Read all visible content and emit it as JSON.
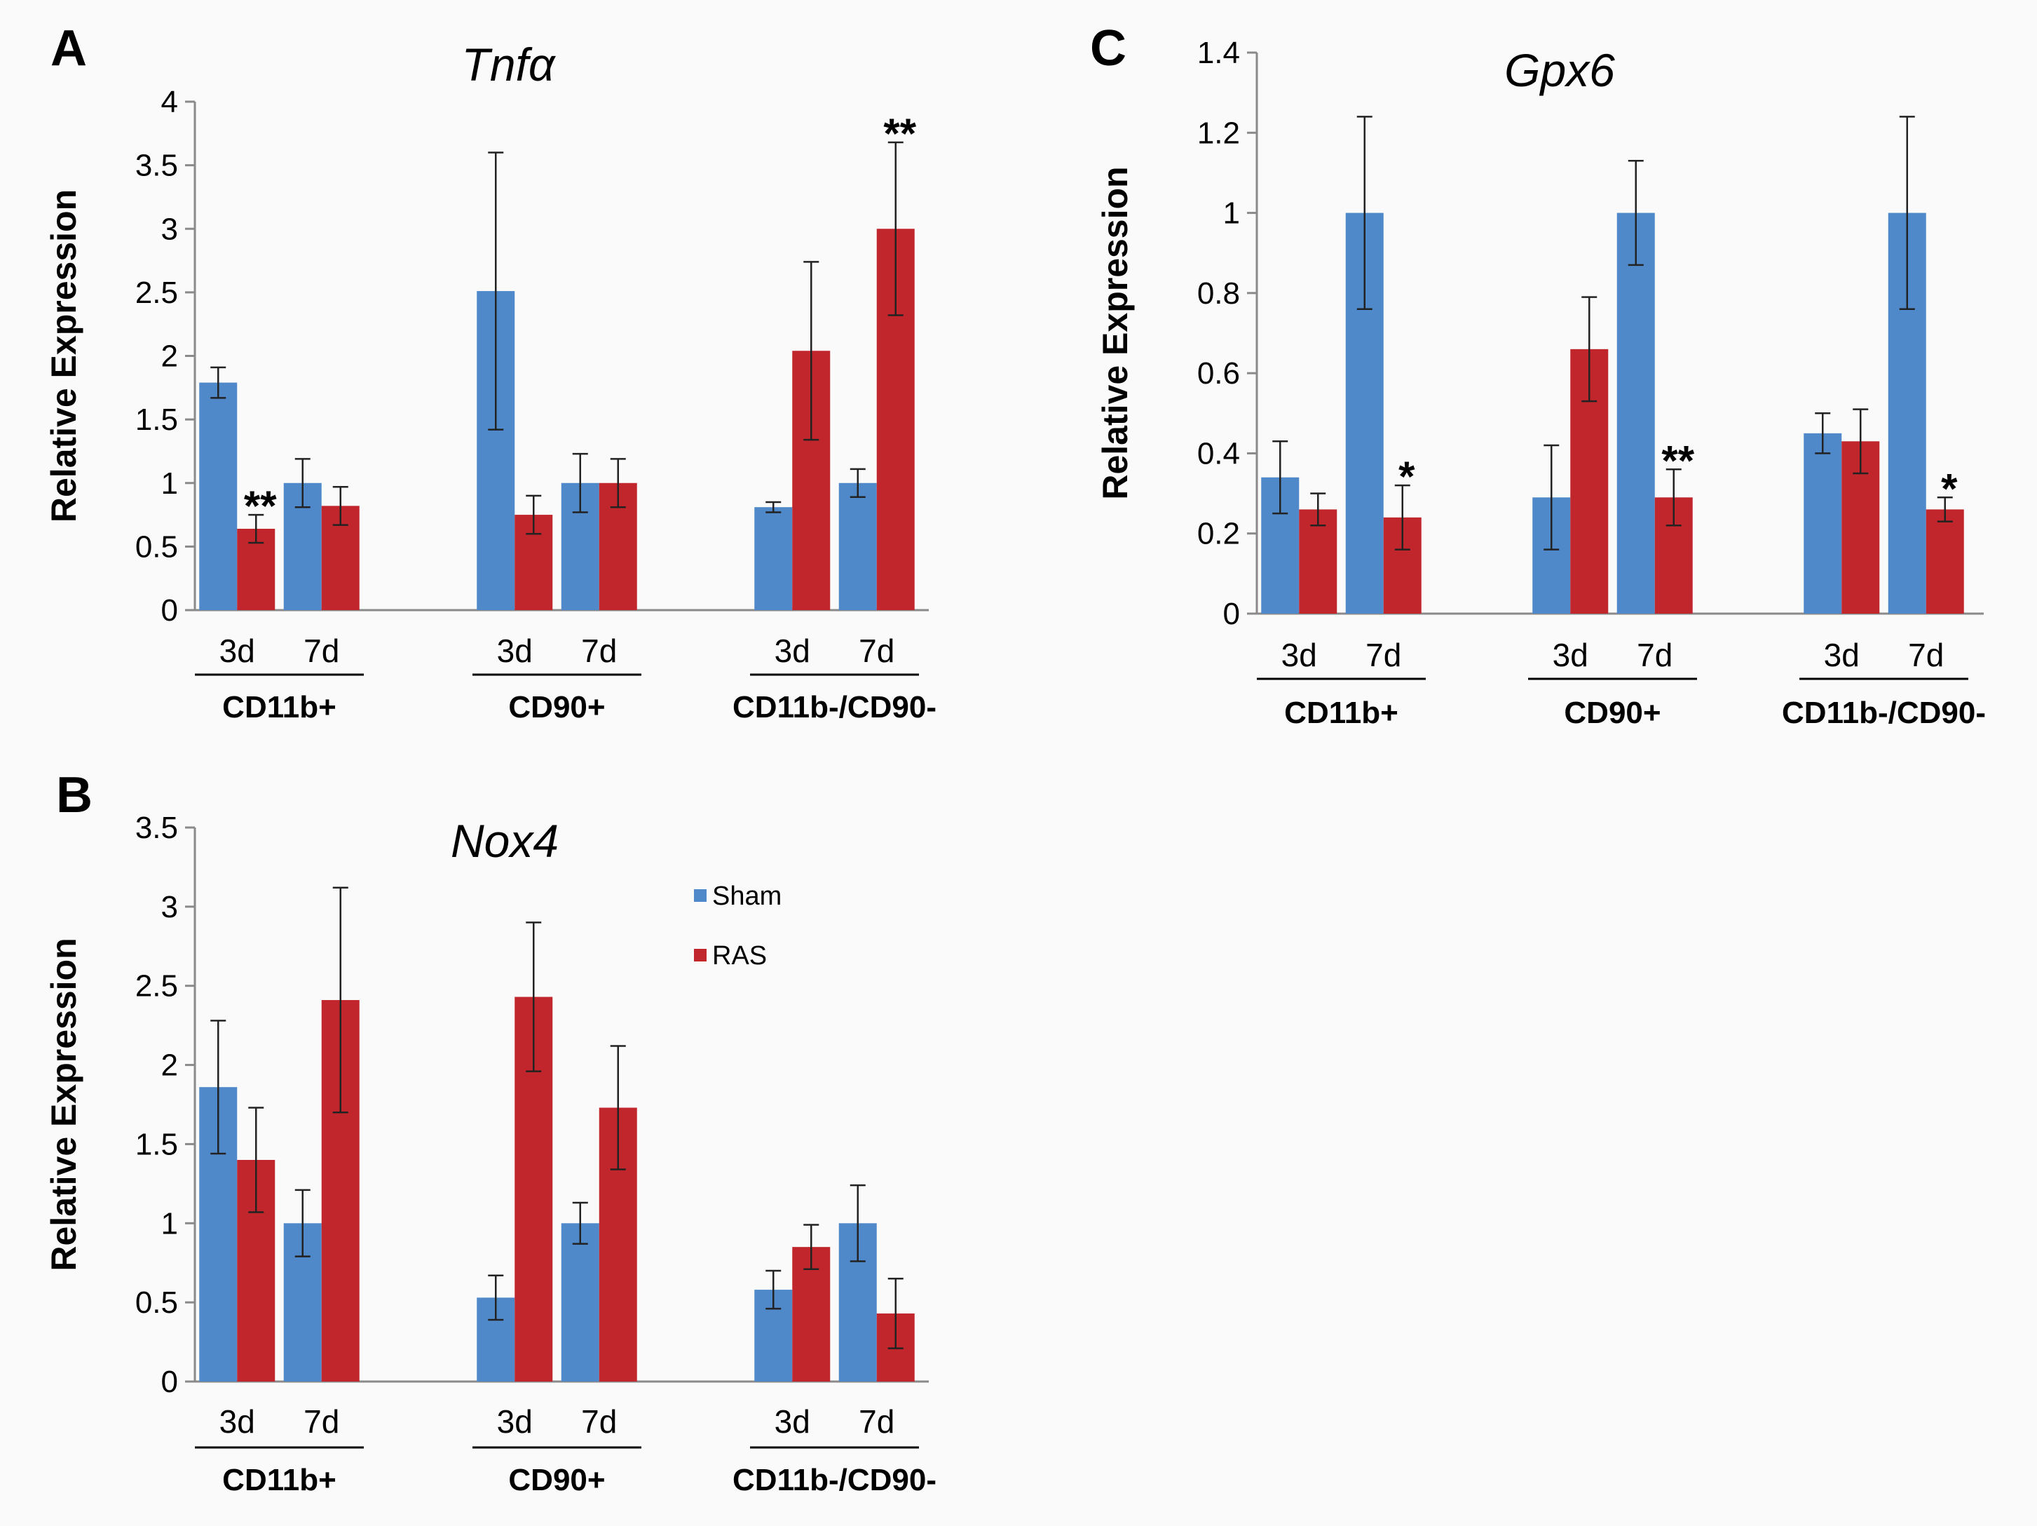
{
  "colors": {
    "sham": "#4f89c9",
    "ras": "#c1262c",
    "axis": "#8a8a8a"
  },
  "legend": {
    "sham": "Sham",
    "ras": "RAS"
  },
  "chart_data": [
    {
      "panel": "A",
      "type": "bar",
      "title": "Tnfα",
      "ylabel": "Relative Expression",
      "ylim": [
        0,
        4
      ],
      "yticks": [
        0,
        0.5,
        1,
        1.5,
        2,
        2.5,
        3,
        3.5,
        4
      ],
      "ytick_labels": [
        "0",
        "0.5",
        "1",
        "1.5",
        "2",
        "2.5",
        "3",
        "3.5",
        "4"
      ],
      "categories": [
        "CD11b+",
        "CD90+",
        "CD11b-/CD90-"
      ],
      "timepoints": [
        "3d",
        "7d"
      ],
      "series": [
        {
          "name": "Sham",
          "values": [
            [
              1.79,
              1.0
            ],
            [
              2.51,
              1.0
            ],
            [
              0.81,
              1.0
            ]
          ],
          "errors": [
            [
              0.12,
              0.19
            ],
            [
              1.09,
              0.23
            ],
            [
              0.04,
              0.11
            ]
          ]
        },
        {
          "name": "RAS",
          "values": [
            [
              0.64,
              0.82
            ],
            [
              0.75,
              1.0
            ],
            [
              2.04,
              3.0
            ]
          ],
          "errors": [
            [
              0.11,
              0.15
            ],
            [
              0.15,
              0.19
            ],
            [
              0.7,
              0.68
            ]
          ]
        }
      ],
      "annotations": [
        {
          "text": "**",
          "category": 0,
          "timepoint": 0,
          "series": 1
        },
        {
          "text": "**",
          "category": 2,
          "timepoint": 1,
          "series": 1
        }
      ]
    },
    {
      "panel": "B",
      "type": "bar",
      "title": "Nox4",
      "ylabel": "Relative Expression",
      "ylim": [
        0,
        3.5
      ],
      "yticks": [
        0,
        0.5,
        1,
        1.5,
        2,
        2.5,
        3,
        3.5
      ],
      "ytick_labels": [
        "0",
        "0.5",
        "1",
        "1.5",
        "2",
        "2.5",
        "3",
        "3.5"
      ],
      "categories": [
        "CD11b+",
        "CD90+",
        "CD11b-/CD90-"
      ],
      "timepoints": [
        "3d",
        "7d"
      ],
      "series": [
        {
          "name": "Sham",
          "values": [
            [
              1.86,
              1.0
            ],
            [
              0.53,
              1.0
            ],
            [
              0.58,
              1.0
            ]
          ],
          "errors": [
            [
              0.42,
              0.21
            ],
            [
              0.14,
              0.13
            ],
            [
              0.12,
              0.24
            ]
          ]
        },
        {
          "name": "RAS",
          "values": [
            [
              1.4,
              2.41
            ],
            [
              2.43,
              1.73
            ],
            [
              0.85,
              0.43
            ]
          ],
          "errors": [
            [
              0.33,
              0.71
            ],
            [
              0.47,
              0.39
            ],
            [
              0.14,
              0.22
            ]
          ]
        }
      ],
      "annotations": [],
      "show_legend": true
    },
    {
      "panel": "C",
      "type": "bar",
      "title": "Gpx6",
      "ylabel": "Relative Expression",
      "ylim": [
        0,
        1.4
      ],
      "yticks": [
        0,
        0.2,
        0.4,
        0.6,
        0.8,
        1,
        1.2,
        1.4
      ],
      "ytick_labels": [
        "0",
        "0.2",
        "0.4",
        "0.6",
        "0.8",
        "1",
        "1.2",
        "1.4"
      ],
      "categories": [
        "CD11b+",
        "CD90+",
        "CD11b-/CD90-"
      ],
      "timepoints": [
        "3d",
        "7d"
      ],
      "series": [
        {
          "name": "Sham",
          "values": [
            [
              0.34,
              1.0
            ],
            [
              0.29,
              1.0
            ],
            [
              0.45,
              1.0
            ]
          ],
          "errors": [
            [
              0.09,
              0.24
            ],
            [
              0.13,
              0.13
            ],
            [
              0.05,
              0.24
            ]
          ]
        },
        {
          "name": "RAS",
          "values": [
            [
              0.26,
              0.24
            ],
            [
              0.66,
              0.29
            ],
            [
              0.43,
              0.26
            ]
          ],
          "errors": [
            [
              0.04,
              0.08
            ],
            [
              0.13,
              0.07
            ],
            [
              0.08,
              0.03
            ]
          ]
        }
      ],
      "annotations": [
        {
          "text": "*",
          "category": 0,
          "timepoint": 1,
          "series": 1
        },
        {
          "text": "**",
          "category": 1,
          "timepoint": 1,
          "series": 1
        },
        {
          "text": "*",
          "category": 2,
          "timepoint": 1,
          "series": 1
        }
      ]
    }
  ]
}
